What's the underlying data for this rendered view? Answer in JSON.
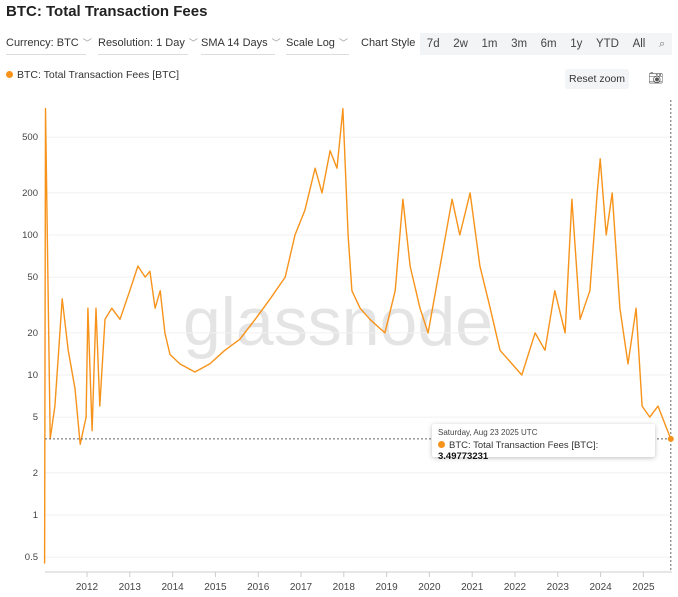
{
  "title": "BTC: Total Transaction Fees",
  "toolbar": {
    "currency": "Currency: BTC",
    "resolution": "Resolution: 1 Day",
    "sma": "SMA 14 Days",
    "scale": "Scale Log",
    "chart_style": "Chart Style",
    "ranges": [
      "7d",
      "2w",
      "1m",
      "3m",
      "6m",
      "1y",
      "YTD",
      "All"
    ]
  },
  "legend": "BTC: Total Transaction Fees [BTC]",
  "reset_zoom": "Reset zoom",
  "watermark": "glassnode",
  "tooltip": {
    "date": "Saturday, Aug 23 2025 UTC",
    "label": "BTC: Total Transaction Fees [BTC]:",
    "value": "3.49773231"
  },
  "colors": {
    "series": "#f7931a",
    "watermark": "#e2e2e2"
  },
  "chart_data": {
    "type": "line",
    "yscale": "log",
    "ylim": [
      0.4,
      1000
    ],
    "xlim": [
      2011.0,
      2025.65
    ],
    "grid": "horizontal",
    "yticks": [
      0.5,
      1,
      2,
      5,
      10,
      20,
      50,
      100,
      200,
      500
    ],
    "xticks": [
      2012,
      2013,
      2014,
      2015,
      2016,
      2017,
      2018,
      2019,
      2020,
      2021,
      2022,
      2023,
      2024,
      2025
    ],
    "series": [
      {
        "name": "BTC: Total Transaction Fees [BTC]",
        "points": [
          [
            2011.01,
            0.45
          ],
          [
            2011.03,
            800
          ],
          [
            2011.14,
            3.5
          ],
          [
            2011.25,
            6
          ],
          [
            2011.42,
            35
          ],
          [
            2011.56,
            15
          ],
          [
            2011.72,
            8
          ],
          [
            2011.84,
            3.2
          ],
          [
            2011.98,
            5
          ],
          [
            2012.02,
            30
          ],
          [
            2012.12,
            4
          ],
          [
            2012.21,
            30
          ],
          [
            2012.3,
            6
          ],
          [
            2012.42,
            25
          ],
          [
            2012.58,
            30
          ],
          [
            2012.77,
            25
          ],
          [
            2013.0,
            40
          ],
          [
            2013.19,
            60
          ],
          [
            2013.36,
            50
          ],
          [
            2013.47,
            55
          ],
          [
            2013.59,
            30
          ],
          [
            2013.71,
            40
          ],
          [
            2013.82,
            20
          ],
          [
            2013.94,
            14
          ],
          [
            2014.17,
            12
          ],
          [
            2014.52,
            10.5
          ],
          [
            2014.87,
            12
          ],
          [
            2015.22,
            15
          ],
          [
            2015.57,
            18
          ],
          [
            2015.93,
            25
          ],
          [
            2016.28,
            35
          ],
          [
            2016.63,
            50
          ],
          [
            2016.86,
            100
          ],
          [
            2017.09,
            150
          ],
          [
            2017.33,
            300
          ],
          [
            2017.49,
            200
          ],
          [
            2017.68,
            400
          ],
          [
            2017.84,
            300
          ],
          [
            2017.98,
            800
          ],
          [
            2018.1,
            100
          ],
          [
            2018.19,
            40
          ],
          [
            2018.38,
            30
          ],
          [
            2018.61,
            25
          ],
          [
            2018.96,
            20
          ],
          [
            2019.2,
            40
          ],
          [
            2019.38,
            180
          ],
          [
            2019.55,
            60
          ],
          [
            2019.78,
            30
          ],
          [
            2019.97,
            20
          ],
          [
            2020.25,
            60
          ],
          [
            2020.53,
            180
          ],
          [
            2020.71,
            100
          ],
          [
            2020.95,
            200
          ],
          [
            2021.18,
            60
          ],
          [
            2021.42,
            30
          ],
          [
            2021.65,
            15
          ],
          [
            2021.93,
            12
          ],
          [
            2022.16,
            10
          ],
          [
            2022.47,
            20
          ],
          [
            2022.7,
            15
          ],
          [
            2022.93,
            40
          ],
          [
            2023.17,
            20
          ],
          [
            2023.33,
            180
          ],
          [
            2023.52,
            25
          ],
          [
            2023.75,
            40
          ],
          [
            2023.92,
            200
          ],
          [
            2023.99,
            350
          ],
          [
            2024.13,
            100
          ],
          [
            2024.27,
            200
          ],
          [
            2024.45,
            30
          ],
          [
            2024.64,
            12
          ],
          [
            2024.83,
            30
          ],
          [
            2024.97,
            6
          ],
          [
            2025.15,
            5
          ],
          [
            2025.34,
            6
          ],
          [
            2025.5,
            4.5
          ],
          [
            2025.64,
            3.4977
          ]
        ]
      }
    ]
  }
}
